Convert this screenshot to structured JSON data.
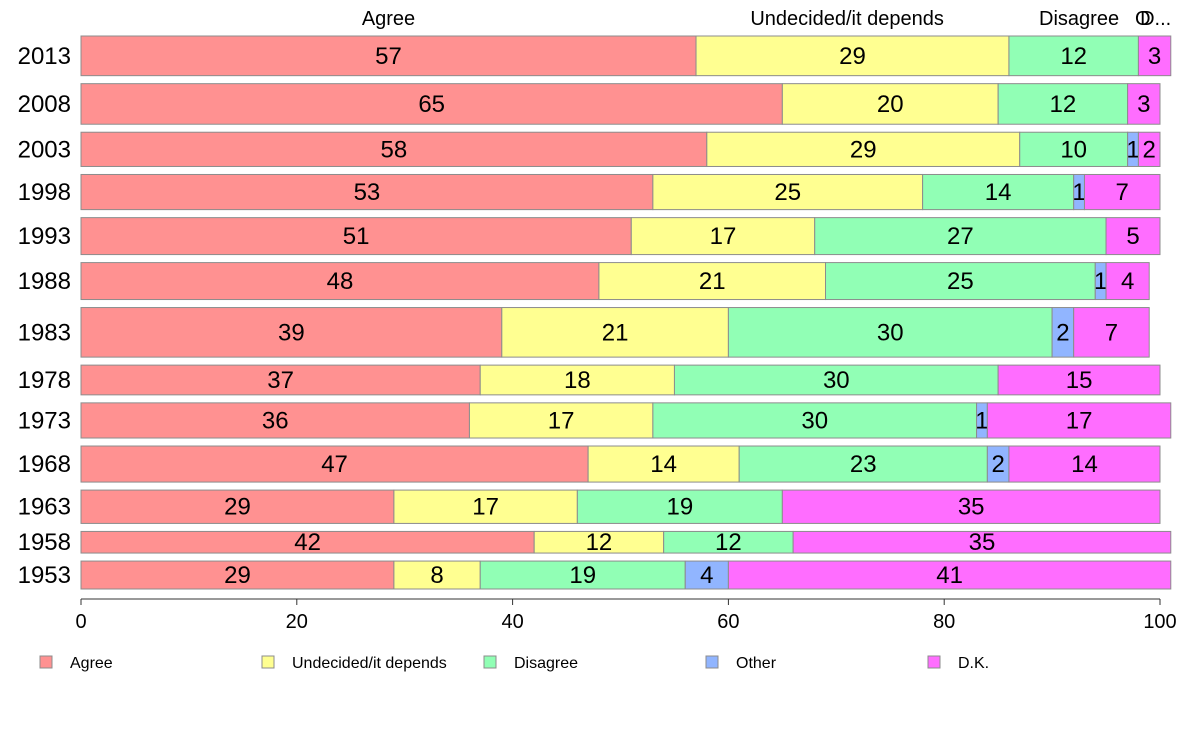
{
  "chart_data": {
    "type": "bar",
    "orientation": "horizontal",
    "stacked": true,
    "categories": [
      "2013",
      "2008",
      "2003",
      "1998",
      "1993",
      "1988",
      "1983",
      "1978",
      "1973",
      "1968",
      "1963",
      "1958",
      "1953"
    ],
    "row_weights": [
      44,
      45,
      38,
      39,
      41,
      41,
      55,
      33,
      39,
      40,
      37,
      24,
      31
    ],
    "series": [
      {
        "name": "Agree",
        "color": "#ff9191",
        "values": [
          57,
          65,
          58,
          53,
          51,
          48,
          39,
          37,
          36,
          47,
          29,
          42,
          29
        ]
      },
      {
        "name": "Undecided/it depends",
        "color": "#ffff91",
        "values": [
          29,
          20,
          29,
          25,
          17,
          21,
          21,
          18,
          17,
          14,
          17,
          12,
          8
        ]
      },
      {
        "name": "Disagree",
        "color": "#91ffb5",
        "values": [
          12,
          12,
          10,
          14,
          27,
          25,
          30,
          30,
          30,
          23,
          19,
          12,
          19
        ]
      },
      {
        "name": "Other",
        "color": "#91b5ff",
        "values": [
          0,
          0,
          1,
          1,
          0,
          1,
          2,
          0,
          1,
          2,
          0,
          0,
          4
        ]
      },
      {
        "name": "D.K.",
        "color": "#ff6dff",
        "values": [
          3,
          3,
          2,
          7,
          5,
          4,
          7,
          15,
          17,
          14,
          35,
          35,
          41
        ]
      }
    ],
    "top_labels": [
      "Agree",
      "Undecided/it depends",
      "Disagree",
      "O",
      "D..."
    ],
    "xlim": [
      0,
      100
    ],
    "xticks": [
      0,
      20,
      40,
      60,
      80,
      100
    ],
    "grid": false,
    "legend_position": "bottom",
    "title": "",
    "xlabel": "",
    "ylabel": ""
  }
}
